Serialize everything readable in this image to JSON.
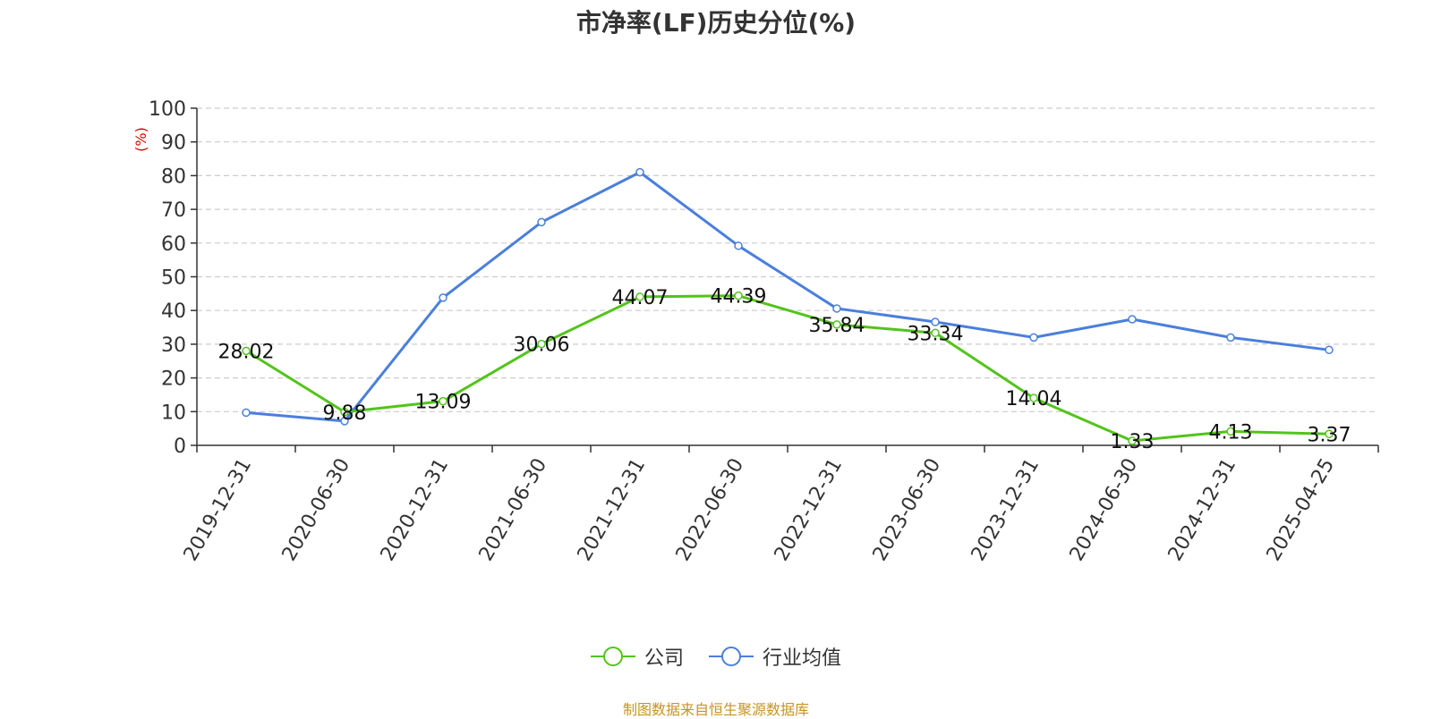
{
  "chart_data": {
    "type": "line",
    "title": "市净率(LF)历史分位(%)",
    "ylabel": "(%)",
    "xlabel": "",
    "categories": [
      "2019-12-31",
      "2020-06-30",
      "2020-12-31",
      "2021-06-30",
      "2021-12-31",
      "2022-06-30",
      "2022-12-31",
      "2023-06-30",
      "2023-12-31",
      "2024-06-30",
      "2024-12-31",
      "2025-04-25"
    ],
    "y_ticks": [
      "0",
      "10",
      "20",
      "30",
      "40",
      "50",
      "60",
      "70",
      "80",
      "90",
      "100"
    ],
    "ylim": [
      0,
      100
    ],
    "grid": true,
    "legend_position": "bottom-center",
    "series": [
      {
        "name": "公司",
        "color": "#52c41a",
        "values": [
          28.02,
          9.88,
          13.09,
          30.06,
          44.07,
          44.39,
          35.84,
          33.34,
          14.04,
          1.33,
          4.13,
          3.37
        ],
        "labels": [
          "28.02",
          "9.88",
          "13.09",
          "30.06",
          "44.07",
          "44.39",
          "35.84",
          "33.34",
          "14.04",
          "1.33",
          "4.13",
          "3.37"
        ]
      },
      {
        "name": "行业均值",
        "color": "#4a7fdc",
        "values": [
          9.7,
          7.2,
          43.8,
          66.2,
          81.0,
          59.2,
          40.6,
          36.6,
          32.0,
          37.4,
          32.0,
          28.3
        ]
      }
    ]
  },
  "footer": {
    "source": "制图数据来自恒生聚源数据库"
  }
}
